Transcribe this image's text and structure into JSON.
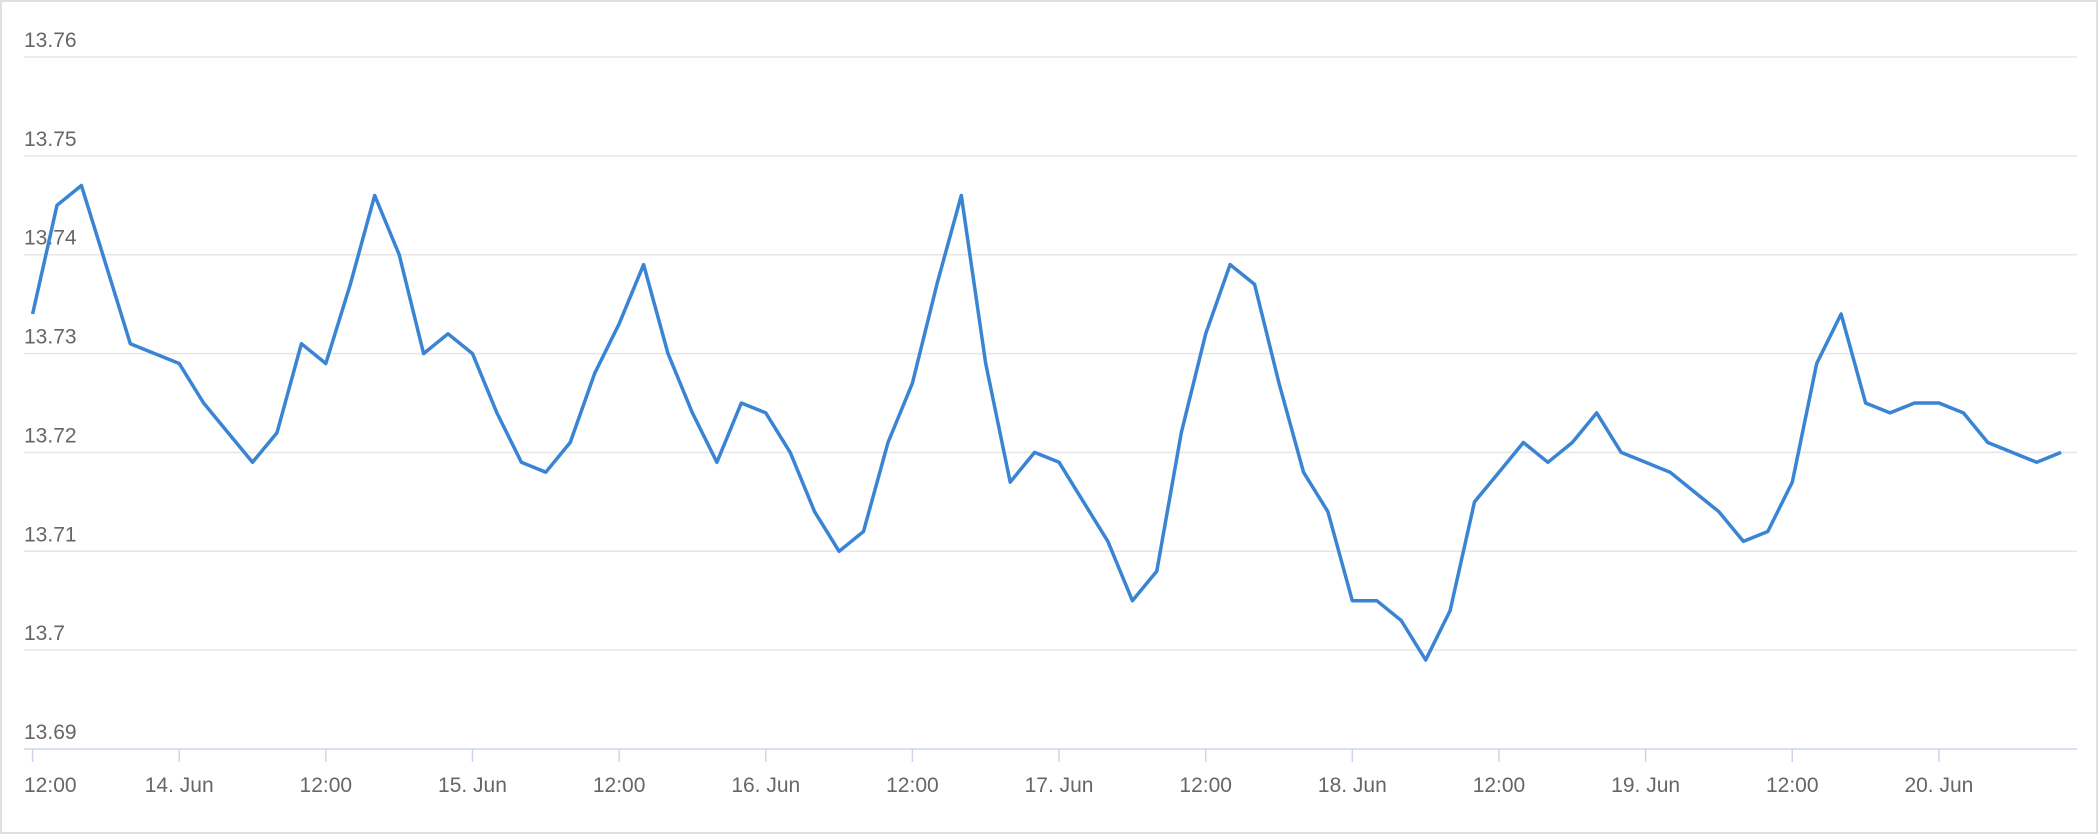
{
  "chart_data": {
    "type": "line",
    "x": [
      12,
      14,
      16,
      18,
      20,
      22,
      24,
      26,
      28,
      30,
      32,
      34,
      36,
      38,
      40,
      42,
      44,
      46,
      48,
      50,
      52,
      54,
      56,
      58,
      60,
      62,
      64,
      66,
      68,
      70,
      72,
      74,
      76,
      78,
      80,
      82,
      84,
      86,
      88,
      90,
      92,
      94,
      96,
      98,
      100,
      102,
      104,
      106,
      108,
      110,
      112,
      114,
      116,
      118,
      120,
      122,
      124,
      126,
      128,
      130,
      132,
      134,
      136,
      138,
      140,
      142,
      144,
      146,
      148,
      150,
      152,
      154,
      156,
      158,
      160,
      162,
      164,
      166,
      168,
      170,
      172,
      174,
      176,
      178
    ],
    "series": [
      {
        "color": "#3a84d4",
        "values": [
          13.734,
          13.745,
          13.747,
          13.739,
          13.731,
          13.73,
          13.729,
          13.725,
          13.722,
          13.719,
          13.722,
          13.731,
          13.729,
          13.737,
          13.746,
          13.74,
          13.73,
          13.732,
          13.73,
          13.724,
          13.719,
          13.718,
          13.721,
          13.728,
          13.733,
          13.739,
          13.73,
          13.724,
          13.719,
          13.725,
          13.724,
          13.72,
          13.714,
          13.71,
          13.712,
          13.721,
          13.727,
          13.737,
          13.746,
          13.729,
          13.717,
          13.72,
          13.719,
          13.715,
          13.711,
          13.705,
          13.708,
          13.722,
          13.732,
          13.739,
          13.737,
          13.727,
          13.718,
          13.714,
          13.705,
          13.705,
          13.703,
          13.699,
          13.704,
          13.715,
          13.718,
          13.721,
          13.719,
          13.721,
          13.724,
          13.72,
          13.719,
          13.718,
          13.716,
          13.714,
          13.711,
          13.712,
          13.717,
          13.729,
          13.734,
          13.725,
          13.724,
          13.725,
          13.725,
          13.724,
          13.721,
          13.72,
          13.719,
          13.72
        ]
      }
    ],
    "xlim": [
      11.3,
      179.3
    ],
    "xticks": [
      {
        "value": 12,
        "label": "12:00"
      },
      {
        "value": 24,
        "label": "14. Jun"
      },
      {
        "value": 36,
        "label": "12:00"
      },
      {
        "value": 48,
        "label": "15. Jun"
      },
      {
        "value": 60,
        "label": "12:00"
      },
      {
        "value": 72,
        "label": "16. Jun"
      },
      {
        "value": 84,
        "label": "12:00"
      },
      {
        "value": 96,
        "label": "17. Jun"
      },
      {
        "value": 108,
        "label": "12:00"
      },
      {
        "value": 120,
        "label": "18. Jun"
      },
      {
        "value": 132,
        "label": "12:00"
      },
      {
        "value": 144,
        "label": "19. Jun"
      },
      {
        "value": 156,
        "label": "12:00"
      },
      {
        "value": 168,
        "label": "20. Jun"
      }
    ],
    "ylim": [
      13.69,
      13.76
    ],
    "yticks": [
      13.69,
      13.7,
      13.71,
      13.72,
      13.73,
      13.74,
      13.75,
      13.76
    ],
    "grid": true
  }
}
